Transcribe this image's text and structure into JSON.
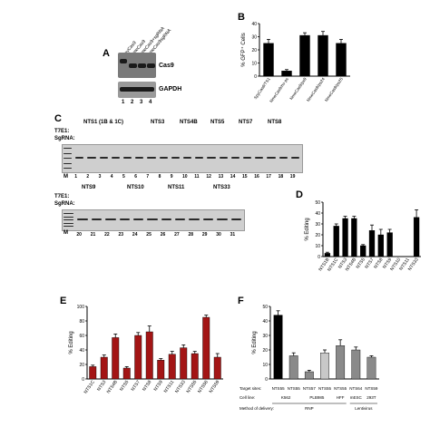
{
  "panel_labels": {
    "A": "A",
    "B": "B",
    "C": "C",
    "D": "D",
    "E": "E",
    "F": "F"
  },
  "panelA": {
    "lane_headers": [
      "SpyCas9",
      "NmeCas9",
      "NmeCas9+sgRNA",
      "NmeCas9sgRNA"
    ],
    "row_labels": [
      "Cas9",
      "GAPDH"
    ],
    "lane_numbers": [
      "1",
      "2",
      "3",
      "4"
    ]
  },
  "panelC": {
    "row1_sites": [
      "NTS1 (1B & 1C)",
      "NTS3",
      "NTS4B",
      "NTS5",
      "NTS7",
      "NTS8"
    ],
    "row2_sites": [
      "NTS9",
      "NTS10",
      "NTS11",
      "NTS33"
    ],
    "t7e1_label": "T7E1:",
    "sgrna_label": "SgRNA:",
    "marker": "M",
    "row1_lanes": [
      "1",
      "2",
      "3",
      "4",
      "5",
      "6",
      "7",
      "8",
      "9",
      "10",
      "11",
      "12",
      "13",
      "14",
      "15",
      "16",
      "17",
      "18",
      "19"
    ],
    "row2_lanes": [
      "20",
      "21",
      "22",
      "23",
      "24",
      "25",
      "26",
      "27",
      "28",
      "29",
      "30",
      "31"
    ]
  },
  "chart_data": [
    {
      "panel": "B",
      "type": "bar",
      "categories": [
        "SpyCas9/TS1",
        "NmeCas9/no ps",
        "NmeCas9/ps9",
        "NmeCas9/ps24",
        "NmeCas9/ps25"
      ],
      "values": [
        25,
        4,
        31,
        31,
        25
      ],
      "errors": [
        3,
        1,
        2,
        3,
        3
      ],
      "ylabel": "% GFP⁺ Cells",
      "ylim": [
        0,
        40
      ],
      "yticks": [
        "0",
        "10",
        "20",
        "30",
        "40"
      ],
      "color": "#000000"
    },
    {
      "panel": "D",
      "type": "bar",
      "categories": [
        "NTS1B",
        "NTS1C",
        "NTS3",
        "NTS4B",
        "NTS5",
        "NTS7",
        "NTS8",
        "NTS9",
        "NTS10",
        "NTS11",
        "NTS33"
      ],
      "values": [
        3,
        28,
        35,
        35,
        10,
        24,
        20,
        22,
        0,
        0,
        36
      ],
      "errors": [
        1,
        2,
        2,
        2,
        1,
        5,
        5,
        3,
        0,
        0,
        7
      ],
      "ylabel": "% Editing",
      "ylim": [
        0,
        50
      ],
      "yticks": [
        "0",
        "10",
        "20",
        "30",
        "40",
        "50"
      ],
      "color": "#000000"
    },
    {
      "panel": "E",
      "type": "bar",
      "categories": [
        "NTS1C",
        "NTS3",
        "NTS4B",
        "NTS5",
        "NTS7",
        "NTS8",
        "NTS9",
        "NTS11",
        "NTS33",
        "NTS55",
        "NTS56",
        "NTS59"
      ],
      "values": [
        17,
        30,
        57,
        15,
        60,
        65,
        26,
        34,
        43,
        35,
        85,
        30
      ],
      "errors": [
        2,
        3,
        5,
        2,
        4,
        8,
        2,
        4,
        4,
        3,
        3,
        5
      ],
      "ylabel": "% Editing",
      "ylim": [
        0,
        100
      ],
      "yticks": [
        "0",
        "20",
        "40",
        "60",
        "80",
        "100"
      ],
      "color": "#a31515"
    },
    {
      "panel": "F",
      "type": "bar",
      "categories": [
        "NTS55",
        "NTS55",
        "NTS57",
        "NTS55",
        "NTS55",
        "NTS64",
        "NTS59"
      ],
      "values": [
        44,
        16,
        5,
        18,
        23,
        20,
        15
      ],
      "errors": [
        3,
        2,
        1,
        2,
        4,
        2,
        1
      ],
      "colors": [
        "#000000",
        "#8a8a8a",
        "#8a8a8a",
        "#c8c8c8",
        "#8a8a8a",
        "#8a8a8a",
        "#8a8a8a"
      ],
      "ylabel": "% Editing",
      "ylim": [
        0,
        50
      ],
      "yticks": [
        "0",
        "10",
        "20",
        "30",
        "40",
        "50"
      ],
      "row_labels": {
        "target": "Target sites:",
        "cellline": "Cell line:",
        "method": "Method of delivery:"
      },
      "cell_lines": [
        "K562",
        "PLB985",
        "HFF",
        "mESC",
        "293T"
      ],
      "methods": [
        "RNP",
        "Lentivirus"
      ]
    }
  ]
}
